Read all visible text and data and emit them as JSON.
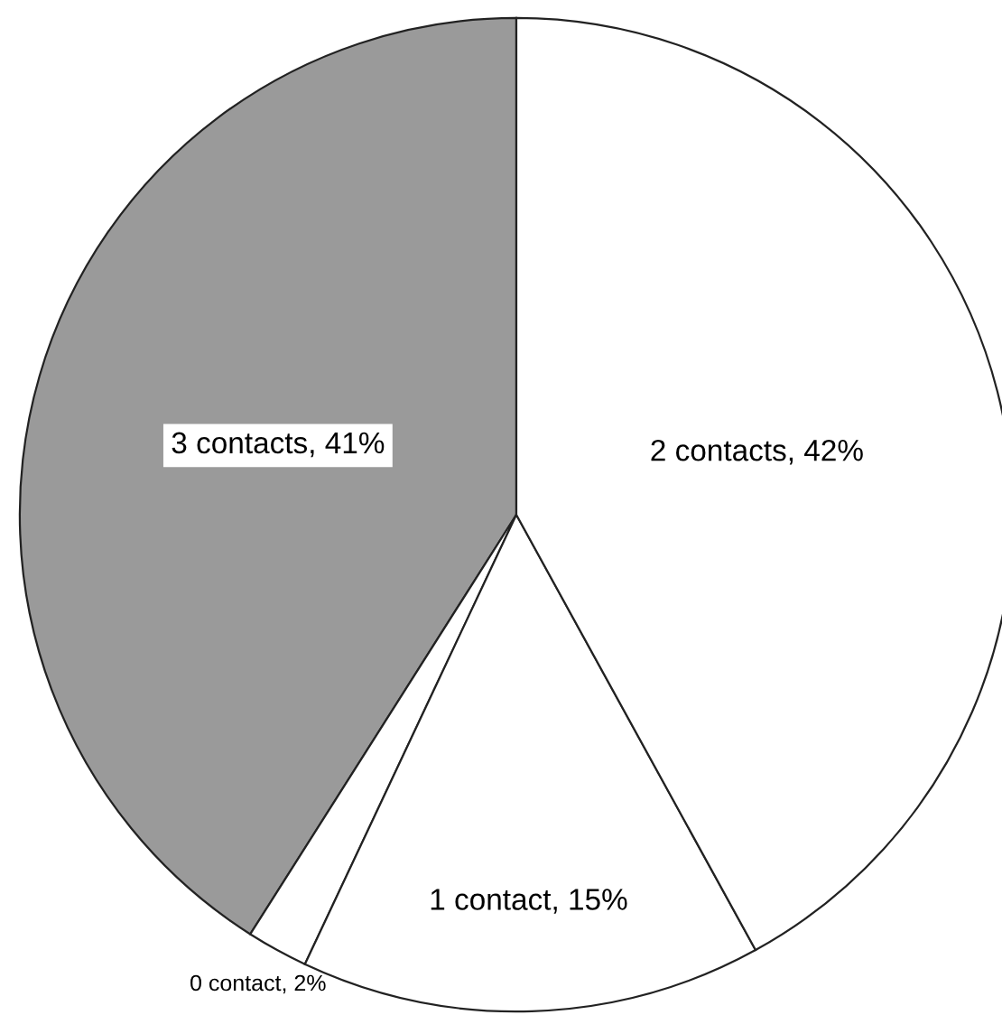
{
  "chart_data": {
    "type": "pie",
    "categories": [
      "3 contacts",
      "0 contact",
      "1 contact",
      "2 contacts"
    ],
    "values": [
      41,
      2,
      15,
      42
    ],
    "value_labels": [
      "41%",
      "2%",
      "15%",
      "42%"
    ],
    "colors": [
      "#9a9a9a",
      "#ffffff",
      "#ffffff",
      "#ffffff"
    ]
  }
}
